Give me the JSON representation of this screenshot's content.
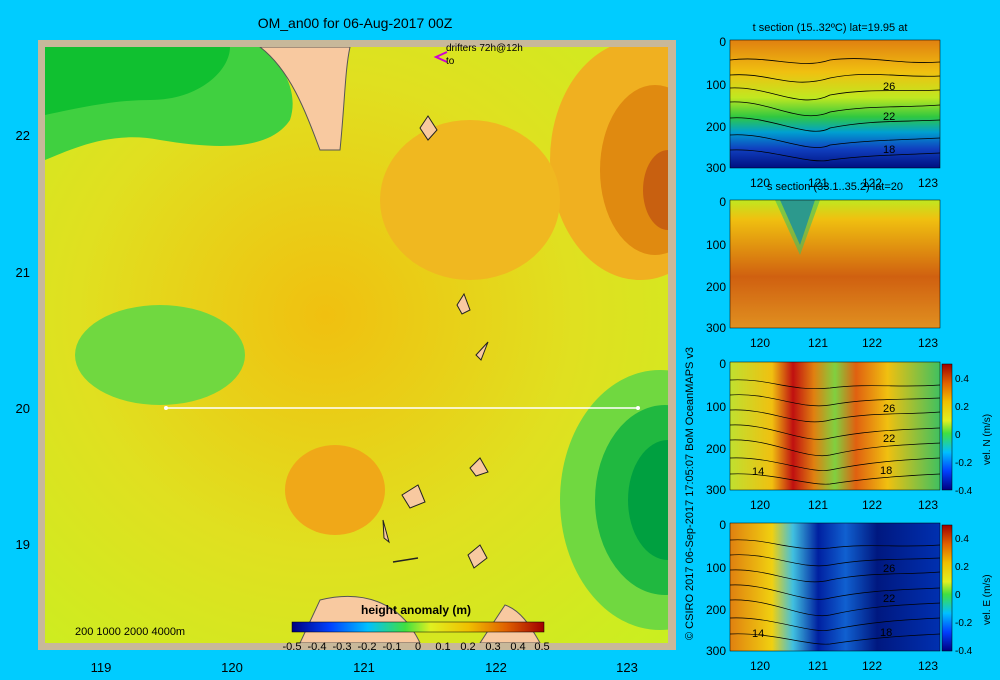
{
  "main": {
    "title": "OM_an00 for 06-Aug-2017 00Z",
    "drifters_label": "drifters 72h@12h",
    "drifters_sub": "to",
    "contour_note": "200  1000  2000  4000m",
    "colorbar_title": "height anomaly (m)",
    "colorbar_ticks": [
      "-0.5",
      "-0.4",
      "-0.3",
      "-0.2",
      "-0.1",
      "0",
      "0.1",
      "0.2",
      "0.3",
      "0.4",
      "0.5"
    ],
    "x_ticks": [
      "119",
      "120",
      "121",
      "122",
      "123"
    ],
    "y_ticks": [
      "22",
      "21",
      "20",
      "19"
    ],
    "section_lon": [
      119.5,
      123.2
    ],
    "section_lat": 20
  },
  "credit": "© CSIRO 2017   06-Sep-2017 17:05:07 BoM OceanMAPS v3",
  "panels": [
    {
      "title": "t section (15..32ºC) lat=19.95 at",
      "contour_labels": [
        "26",
        "22",
        "18"
      ]
    },
    {
      "title": "s section (33.1..35.2) lat=20",
      "contour_labels": []
    },
    {
      "title": "",
      "contour_labels": [
        "26",
        "22",
        "18",
        "14"
      ],
      "cbar_label": "vel. N (m/s)"
    },
    {
      "title": "",
      "contour_labels": [
        "26",
        "22",
        "18",
        "14"
      ],
      "cbar_label": "vel. E (m/s)"
    }
  ],
  "section_axes": {
    "x_ticks": [
      "120",
      "121",
      "122",
      "123"
    ],
    "y_ticks": [
      "0",
      "100",
      "200",
      "300"
    ],
    "cbar_ticks": [
      "0.4",
      "0.2",
      "0",
      "-0.2",
      "-0.4"
    ]
  },
  "chart_data": [
    {
      "type": "heatmap",
      "title": "OM_an00 for 06-Aug-2017 00Z",
      "xlim": [
        118.5,
        123.5
      ],
      "ylim": [
        18.3,
        22.7
      ],
      "clim": [
        -0.5,
        0.5
      ],
      "colorbar_label": "height anomaly (m)",
      "features": [
        {
          "name": "low",
          "lon": 119.9,
          "lat": 20.5,
          "value": 0.05
        },
        {
          "name": "low",
          "lon": 118.8,
          "lat": 22.4,
          "value": 0.0
        },
        {
          "name": "low",
          "lon": 123.4,
          "lat": 19.6,
          "value": -0.05
        },
        {
          "name": "high",
          "lon": 123.4,
          "lat": 21.7,
          "value": 0.45
        },
        {
          "name": "high",
          "lon": 120.8,
          "lat": 19.3,
          "value": 0.3
        },
        {
          "name": "high",
          "lon": 121.7,
          "lat": 21.5,
          "value": 0.28
        }
      ]
    },
    {
      "type": "heatmap",
      "title": "t section (15..32ºC) lat=19.95 at",
      "xlim": [
        119.5,
        123.2
      ],
      "ylim": [
        300,
        0
      ],
      "clim": [
        15,
        32
      ]
    },
    {
      "type": "heatmap",
      "title": "s section (33.1..35.2) lat=20",
      "xlim": [
        119.5,
        123.2
      ],
      "ylim": [
        300,
        0
      ],
      "clim": [
        33.1,
        35.2
      ]
    },
    {
      "type": "heatmap",
      "xlim": [
        119.5,
        123.2
      ],
      "ylim": [
        300,
        0
      ],
      "clim": [
        -0.4,
        0.4
      ],
      "colorbar_label": "vel. N (m/s)"
    },
    {
      "type": "heatmap",
      "xlim": [
        119.5,
        123.2
      ],
      "ylim": [
        300,
        0
      ],
      "clim": [
        -0.4,
        0.4
      ],
      "colorbar_label": "vel. E (m/s)"
    }
  ]
}
